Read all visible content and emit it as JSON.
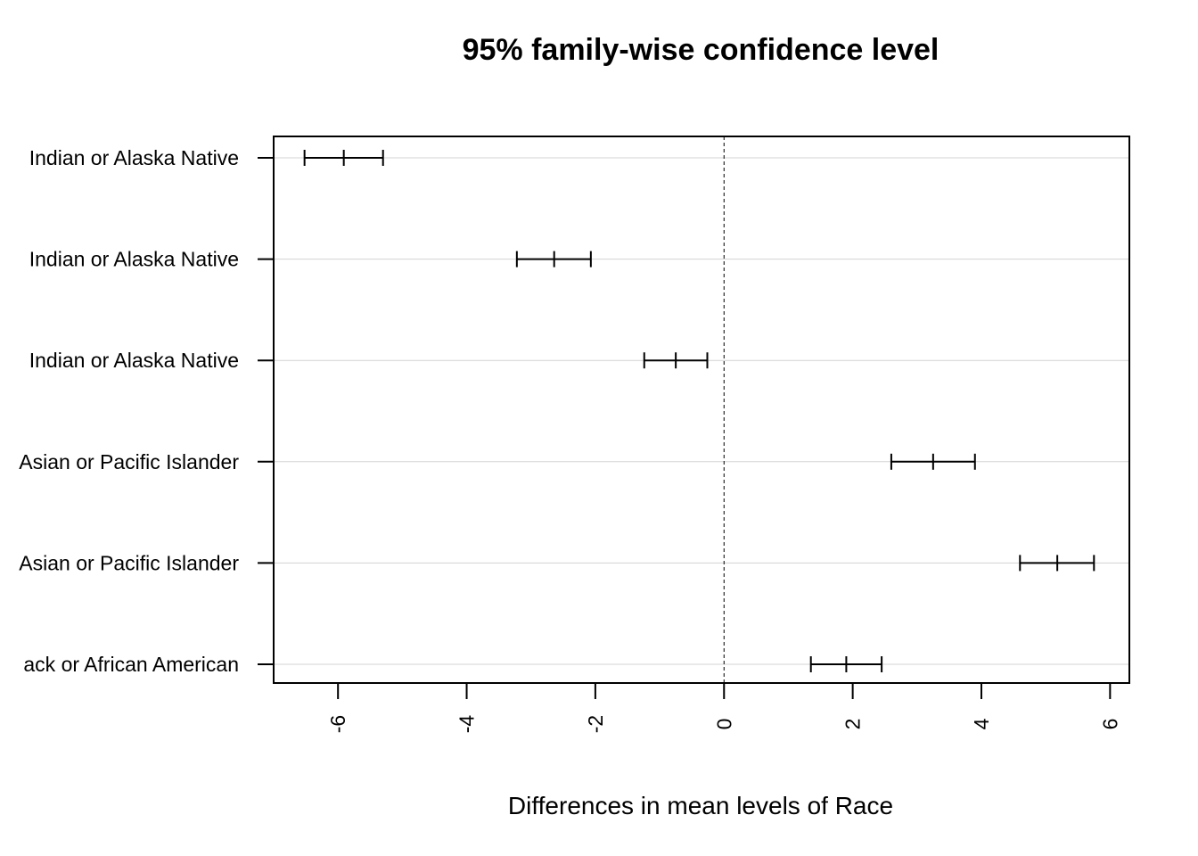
{
  "chart_data": {
    "type": "errorbar",
    "title": "95% family-wise confidence level",
    "xlabel": "Differences in mean levels of Race",
    "ylabel": "",
    "xlim": [
      -7.0,
      6.3
    ],
    "xticks": [
      -6,
      -4,
      -2,
      0,
      2,
      4,
      6
    ],
    "xtick_labels": [
      "-6",
      "-4",
      "-2",
      "0",
      "2",
      "4",
      "6"
    ],
    "reference_line": 0,
    "grid": "horizontal",
    "categories": [
      "Indian or Alaska Native",
      "Indian or Alaska Native",
      "Indian or Alaska Native",
      "Asian or Pacific Islander",
      "Asian or Pacific Islander",
      "ack or African American"
    ],
    "intervals": [
      {
        "lwr": -6.52,
        "estimate": -5.91,
        "upr": -5.3
      },
      {
        "lwr": -3.22,
        "estimate": -2.64,
        "upr": -2.07
      },
      {
        "lwr": -1.24,
        "estimate": -0.75,
        "upr": -0.26
      },
      {
        "lwr": 2.6,
        "estimate": 3.25,
        "upr": 3.9
      },
      {
        "lwr": 4.6,
        "estimate": 5.18,
        "upr": 5.75
      },
      {
        "lwr": 1.35,
        "estimate": 1.9,
        "upr": 2.45
      }
    ]
  }
}
